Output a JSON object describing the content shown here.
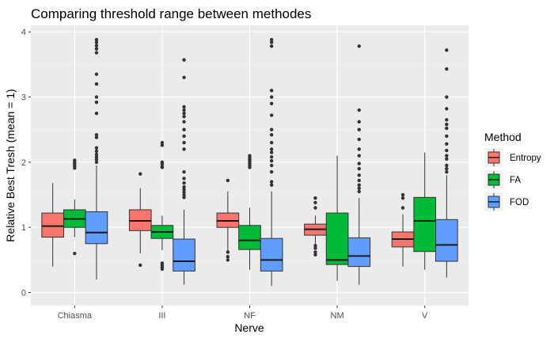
{
  "chart_data": {
    "type": "boxplot",
    "title": "Comparing threshold range between methodes",
    "xlabel": "Nerve",
    "ylabel": "Relative Best Tresh (mean = 1)",
    "categories": [
      "Chiasma",
      "III",
      "NF",
      "NM",
      "V"
    ],
    "ylim": [
      -0.2,
      4.1
    ],
    "yticks": [
      0,
      1,
      2,
      3,
      4
    ],
    "grid": true,
    "legend": {
      "title": "Method",
      "position": "right"
    },
    "series": [
      {
        "name": "Entropy",
        "color": "#F8766D",
        "boxes": [
          {
            "min": 0.4,
            "q1": 0.85,
            "median": 1.02,
            "q3": 1.22,
            "max": 1.68,
            "outliers": []
          },
          {
            "min": 0.6,
            "q1": 0.95,
            "median": 1.1,
            "q3": 1.27,
            "max": 1.6,
            "outliers": [
              1.82,
              0.42
            ]
          },
          {
            "min": 0.62,
            "q1": 1.0,
            "median": 1.1,
            "q3": 1.22,
            "max": 1.55,
            "outliers": [
              1.72,
              0.62,
              0.55,
              0.5
            ]
          },
          {
            "min": 0.75,
            "q1": 0.88,
            "median": 0.97,
            "q3": 1.05,
            "max": 1.18,
            "outliers": [
              1.45,
              1.38,
              1.3,
              0.72,
              0.68,
              0.62,
              0.58
            ]
          },
          {
            "min": 0.4,
            "q1": 0.7,
            "median": 0.82,
            "q3": 0.93,
            "max": 1.2,
            "outliers": [
              1.5,
              1.45,
              1.3
            ]
          }
        ]
      },
      {
        "name": "FA",
        "color": "#00BA38",
        "boxes": [
          {
            "min": 0.85,
            "q1": 1.0,
            "median": 1.13,
            "q3": 1.27,
            "max": 1.43,
            "outliers": [
              2.03,
              2.0,
              1.97,
              1.94,
              1.91,
              0.6
            ]
          },
          {
            "min": 0.65,
            "q1": 0.83,
            "median": 0.93,
            "q3": 1.03,
            "max": 1.18,
            "outliers": [
              2.3,
              2.26,
              2.0,
              1.97,
              1.93,
              1.92,
              0.45,
              0.42,
              0.39,
              0.36
            ]
          },
          {
            "min": 0.35,
            "q1": 0.66,
            "median": 0.8,
            "q3": 1.03,
            "max": 1.3,
            "outliers": [
              2.1,
              2.07,
              2.04,
              2.01,
              1.98,
              1.95,
              1.92
            ]
          },
          {
            "min": 0.18,
            "q1": 0.43,
            "median": 0.5,
            "q3": 1.22,
            "max": 2.1,
            "outliers": []
          },
          {
            "min": 0.35,
            "q1": 0.63,
            "median": 1.1,
            "q3": 1.46,
            "max": 2.15,
            "outliers": []
          }
        ]
      },
      {
        "name": "FOD",
        "color": "#619CFF",
        "boxes": [
          {
            "min": 0.2,
            "q1": 0.75,
            "median": 0.92,
            "q3": 1.24,
            "max": 1.95,
            "outliers": [
              3.88,
              3.84,
              3.79,
              3.74,
              3.68,
              3.35,
              3.2,
              3.0,
              2.92,
              2.75,
              2.42,
              2.38,
              2.22,
              2.17,
              2.12,
              2.08,
              2.04,
              2.0
            ]
          },
          {
            "min": 0.12,
            "q1": 0.33,
            "median": 0.48,
            "q3": 0.82,
            "max": 1.27,
            "outliers": [
              3.57,
              3.3,
              2.85,
              2.8,
              2.75,
              2.7,
              2.62,
              2.5,
              2.4,
              2.3,
              2.2,
              1.85,
              1.75,
              1.68,
              1.62,
              1.58,
              1.54,
              1.5,
              1.46
            ]
          },
          {
            "min": 0.1,
            "q1": 0.33,
            "median": 0.5,
            "q3": 0.83,
            "max": 1.55,
            "outliers": [
              3.88,
              3.84,
              3.78,
              3.1,
              3.0,
              2.9,
              2.72,
              2.5,
              2.42,
              2.3,
              2.2,
              2.15,
              2.08,
              2.02,
              1.95,
              1.85,
              1.7,
              1.65
            ]
          },
          {
            "min": 0.12,
            "q1": 0.4,
            "median": 0.56,
            "q3": 0.84,
            "max": 1.45,
            "outliers": [
              3.78,
              2.8,
              2.62,
              2.5,
              2.35,
              2.2,
              2.1,
              1.98,
              1.9,
              1.8,
              1.72,
              1.65,
              1.6,
              1.55
            ]
          },
          {
            "min": 0.23,
            "q1": 0.48,
            "median": 0.73,
            "q3": 1.12,
            "max": 1.8,
            "outliers": [
              3.72,
              3.43,
              3.0,
              2.82,
              2.65,
              2.58,
              2.52,
              2.4,
              2.28,
              2.18,
              2.1,
              2.05,
              1.95,
              1.9,
              1.85
            ]
          }
        ]
      }
    ]
  }
}
